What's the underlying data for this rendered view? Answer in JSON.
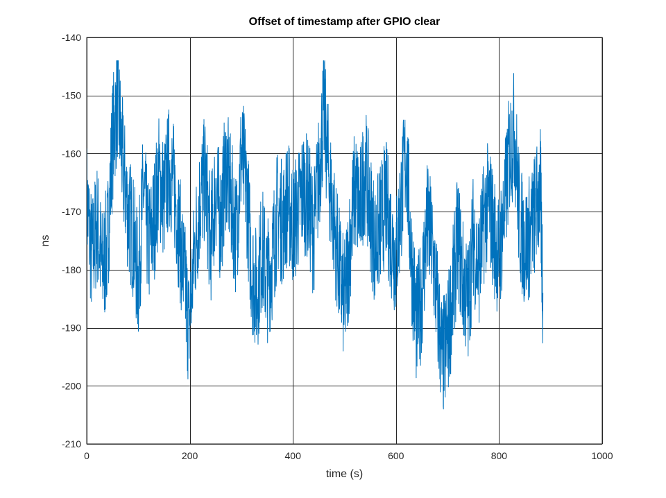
{
  "chart_data": {
    "type": "line",
    "title": "Offset of timestamp after GPIO clear",
    "xlabel": "time (s)",
    "ylabel": "ns",
    "xlim": [
      0,
      1000
    ],
    "ylim": [
      -210,
      -140
    ],
    "xticks": [
      0,
      200,
      400,
      600,
      800,
      1000
    ],
    "yticks": [
      -140,
      -150,
      -160,
      -170,
      -180,
      -190,
      -200,
      -210
    ],
    "grid": true,
    "line_color": "#0072BD",
    "series": [
      {
        "x": [
          0,
          10,
          20,
          30,
          40,
          50,
          60,
          70,
          80,
          90,
          100,
          110,
          120,
          130,
          140,
          150,
          160,
          170,
          180,
          190,
          198,
          210,
          220,
          230,
          240,
          250,
          260,
          270,
          280,
          290,
          300,
          310,
          320,
          330,
          340,
          350,
          360,
          370,
          380,
          390,
          400,
          410,
          420,
          430,
          440,
          450,
          460,
          470,
          480,
          490,
          500,
          510,
          520,
          530,
          540,
          550,
          560,
          570,
          580,
          590,
          600,
          610,
          620,
          630,
          640,
          650,
          660,
          670,
          680,
          690,
          700,
          710,
          720,
          730,
          740,
          750,
          760,
          770,
          780,
          790,
          800,
          810,
          820,
          830,
          840,
          850,
          860,
          870,
          880,
          885
        ],
        "y": [
          -168,
          -178,
          -172,
          -180,
          -176,
          -158,
          -150,
          -162,
          -170,
          -174,
          -182,
          -166,
          -176,
          -172,
          -164,
          -168,
          -162,
          -166,
          -174,
          -182,
          -190,
          -176,
          -168,
          -164,
          -176,
          -166,
          -172,
          -162,
          -168,
          -174,
          -160,
          -166,
          -180,
          -184,
          -176,
          -182,
          -178,
          -170,
          -172,
          -168,
          -172,
          -170,
          -166,
          -168,
          -174,
          -164,
          -152,
          -164,
          -172,
          -180,
          -186,
          -176,
          -166,
          -170,
          -162,
          -170,
          -176,
          -172,
          -168,
          -174,
          -178,
          -168,
          -160,
          -178,
          -190,
          -184,
          -172,
          -176,
          -186,
          -196,
          -192,
          -184,
          -174,
          -182,
          -186,
          -174,
          -180,
          -172,
          -168,
          -174,
          -178,
          -170,
          -160,
          -156,
          -172,
          -176,
          -174,
          -170,
          -166,
          -184
        ]
      }
    ]
  }
}
